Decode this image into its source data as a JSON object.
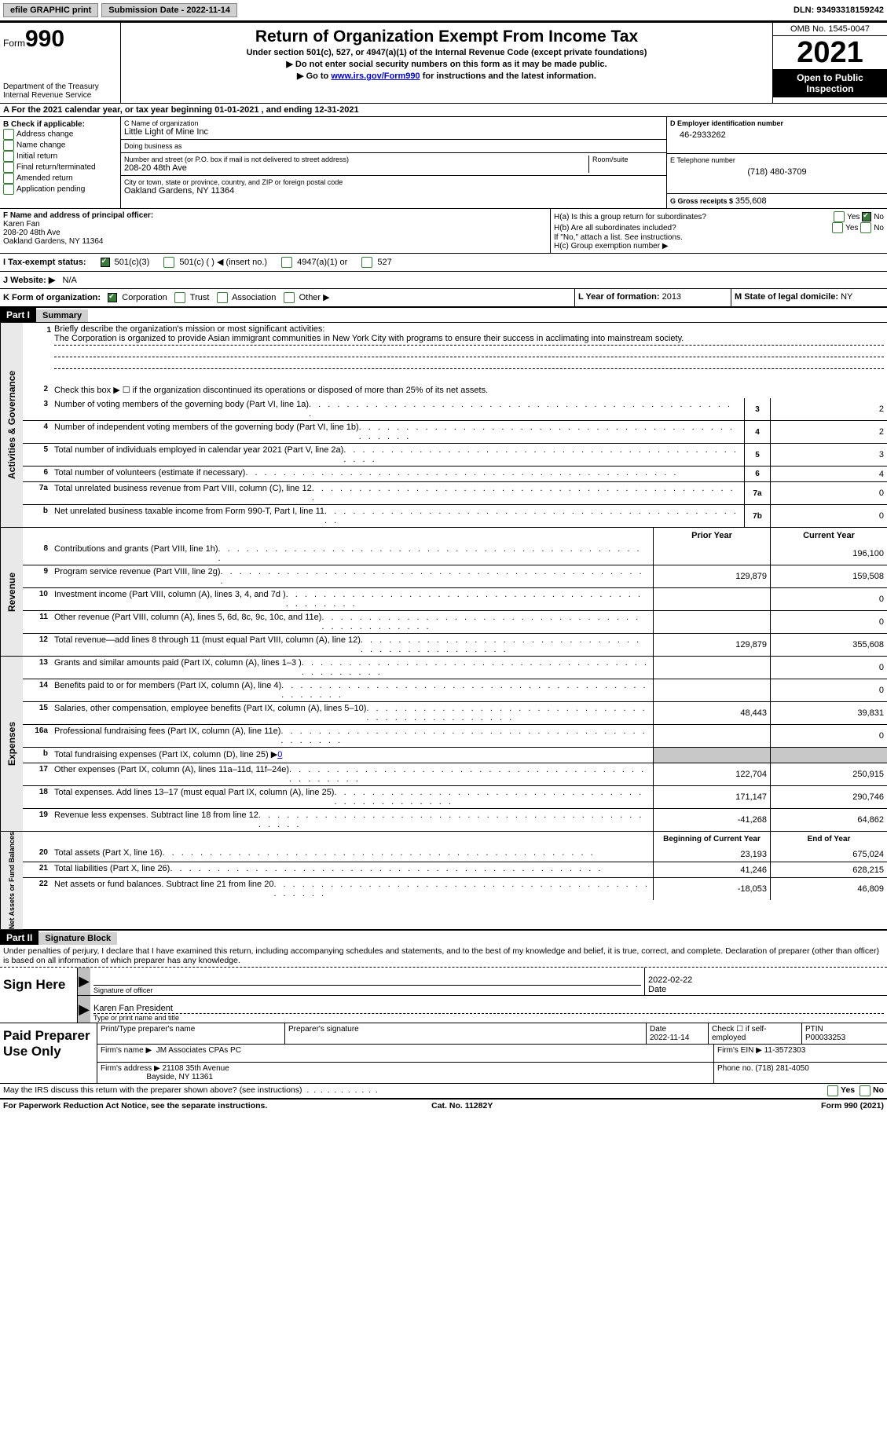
{
  "top": {
    "efile": "efile GRAPHIC print",
    "sub_date_label": "Submission Date - 2022-11-14",
    "dln": "DLN: 93493318159242"
  },
  "header": {
    "form_word": "Form",
    "form_num": "990",
    "dept": "Department of the Treasury",
    "irs": "Internal Revenue Service",
    "title": "Return of Organization Exempt From Income Tax",
    "sub1": "Under section 501(c), 527, or 4947(a)(1) of the Internal Revenue Code (except private foundations)",
    "sub2": "▶ Do not enter social security numbers on this form as it may be made public.",
    "sub3_pre": "▶ Go to ",
    "sub3_link": "www.irs.gov/Form990",
    "sub3_post": " for instructions and the latest information.",
    "omb": "OMB No. 1545-0047",
    "year": "2021",
    "inspect": "Open to Public Inspection"
  },
  "A": "A For the 2021 calendar year, or tax year beginning 01-01-2021    , and ending 12-31-2021",
  "B": {
    "title": "B Check if applicable:",
    "items": [
      "Address change",
      "Name change",
      "Initial return",
      "Final return/terminated",
      "Amended return",
      "Application pending"
    ]
  },
  "C": {
    "name_label": "C Name of organization",
    "name": "Little Light of Mine Inc",
    "dba_label": "Doing business as",
    "dba": "",
    "addr_label": "Number and street (or P.O. box if mail is not delivered to street address)",
    "room_label": "Room/suite",
    "addr": "208-20 48th Ave",
    "city_label": "City or town, state or province, country, and ZIP or foreign postal code",
    "city": "Oakland Gardens, NY  11364"
  },
  "D": {
    "label": "D Employer identification number",
    "val": "46-2933262"
  },
  "E": {
    "label": "E Telephone number",
    "val": "(718) 480-3709"
  },
  "G": {
    "label": "G Gross receipts $",
    "val": "355,608"
  },
  "F": {
    "label": "F  Name and address of principal officer:",
    "name": "Karen Fan",
    "addr": "208-20 48th Ave",
    "city": "Oakland Gardens, NY  11364"
  },
  "H": {
    "a": "H(a)  Is this a group return for subordinates?",
    "b": "H(b)  Are all subordinates included?",
    "b2": "If \"No,\" attach a list. See instructions.",
    "c": "H(c)  Group exemption number ▶",
    "yes": "Yes",
    "no": "No"
  },
  "I": {
    "label": "I  Tax-exempt status:",
    "opts": [
      "501(c)(3)",
      "501(c) (  ) ◀ (insert no.)",
      "4947(a)(1) or",
      "527"
    ]
  },
  "J": {
    "label": "J  Website: ▶",
    "val": "N/A"
  },
  "K": {
    "label": "K Form of organization:",
    "opts": [
      "Corporation",
      "Trust",
      "Association",
      "Other ▶"
    ]
  },
  "L": {
    "label": "L Year of formation:",
    "val": "2013"
  },
  "M": {
    "label": "M State of legal domicile:",
    "val": "NY"
  },
  "partI": {
    "hdr": "Part I",
    "title": "Summary"
  },
  "mission": {
    "q": "Briefly describe the organization's mission or most significant activities:",
    "text": "The Corporation is organized to provide Asian immigrant communities in New York City with programs to ensure their success in acclimating into mainstream society."
  },
  "line2": "Check this box ▶ ☐  if the organization discontinued its operations or disposed of more than 25% of its net assets.",
  "tabs": {
    "gov": "Activities & Governance",
    "rev": "Revenue",
    "exp": "Expenses",
    "net": "Net Assets or Fund Balances"
  },
  "gov_rows": [
    {
      "n": "3",
      "label": "Number of voting members of the governing body (Part VI, line 1a)",
      "box": "3",
      "val": "2"
    },
    {
      "n": "4",
      "label": "Number of independent voting members of the governing body (Part VI, line 1b)",
      "box": "4",
      "val": "2"
    },
    {
      "n": "5",
      "label": "Total number of individuals employed in calendar year 2021 (Part V, line 2a)",
      "box": "5",
      "val": "3"
    },
    {
      "n": "6",
      "label": "Total number of volunteers (estimate if necessary)",
      "box": "6",
      "val": "4"
    },
    {
      "n": "7a",
      "label": "Total unrelated business revenue from Part VIII, column (C), line 12",
      "box": "7a",
      "val": "0"
    },
    {
      "n": "b",
      "label": "Net unrelated business taxable income from Form 990-T, Part I, line 11",
      "box": "7b",
      "val": "0"
    }
  ],
  "col_hdr": {
    "prior": "Prior Year",
    "current": "Current Year"
  },
  "rev_rows": [
    {
      "n": "8",
      "label": "Contributions and grants (Part VIII, line 1h)",
      "p": "",
      "c": "196,100"
    },
    {
      "n": "9",
      "label": "Program service revenue (Part VIII, line 2g)",
      "p": "129,879",
      "c": "159,508"
    },
    {
      "n": "10",
      "label": "Investment income (Part VIII, column (A), lines 3, 4, and 7d )",
      "p": "",
      "c": "0"
    },
    {
      "n": "11",
      "label": "Other revenue (Part VIII, column (A), lines 5, 6d, 8c, 9c, 10c, and 11e)",
      "p": "",
      "c": "0"
    },
    {
      "n": "12",
      "label": "Total revenue—add lines 8 through 11 (must equal Part VIII, column (A), line 12)",
      "p": "129,879",
      "c": "355,608"
    }
  ],
  "exp_rows": [
    {
      "n": "13",
      "label": "Grants and similar amounts paid (Part IX, column (A), lines 1–3 )",
      "p": "",
      "c": "0"
    },
    {
      "n": "14",
      "label": "Benefits paid to or for members (Part IX, column (A), line 4)",
      "p": "",
      "c": "0"
    },
    {
      "n": "15",
      "label": "Salaries, other compensation, employee benefits (Part IX, column (A), lines 5–10)",
      "p": "48,443",
      "c": "39,831"
    },
    {
      "n": "16a",
      "label": "Professional fundraising fees (Part IX, column (A), line 11e)",
      "p": "",
      "c": "0"
    },
    {
      "n": "b",
      "label_html": "Total fundraising expenses (Part IX, column (D), line 25) ▶",
      "link": "0",
      "shaded": true
    },
    {
      "n": "17",
      "label": "Other expenses (Part IX, column (A), lines 11a–11d, 11f–24e)",
      "p": "122,704",
      "c": "250,915"
    },
    {
      "n": "18",
      "label": "Total expenses. Add lines 13–17 (must equal Part IX, column (A), line 25)",
      "p": "171,147",
      "c": "290,746"
    },
    {
      "n": "19",
      "label": "Revenue less expenses. Subtract line 18 from line 12",
      "p": "-41,268",
      "c": "64,862"
    }
  ],
  "net_hdr": {
    "beg": "Beginning of Current Year",
    "end": "End of Year"
  },
  "net_rows": [
    {
      "n": "20",
      "label": "Total assets (Part X, line 16)",
      "p": "23,193",
      "c": "675,024"
    },
    {
      "n": "21",
      "label": "Total liabilities (Part X, line 26)",
      "p": "41,246",
      "c": "628,215"
    },
    {
      "n": "22",
      "label": "Net assets or fund balances. Subtract line 21 from line 20",
      "p": "-18,053",
      "c": "46,809"
    }
  ],
  "partII": {
    "hdr": "Part II",
    "title": "Signature Block"
  },
  "sig": {
    "decl": "Under penalties of perjury, I declare that I have examined this return, including accompanying schedules and statements, and to the best of my knowledge and belief, it is true, correct, and complete. Declaration of preparer (other than officer) is based on all information of which preparer has any knowledge.",
    "sign_here": "Sign Here",
    "sig_officer": "Signature of officer",
    "date": "Date",
    "date_val": "2022-02-22",
    "name_line": "Karen Fan  President",
    "name_lbl": "Type or print name and title"
  },
  "paid": {
    "title": "Paid Preparer Use Only",
    "r1": {
      "a": "Print/Type preparer's name",
      "b": "Preparer's signature",
      "c": "Date",
      "cval": "2022-11-14",
      "d": "Check ☐ if self-employed",
      "e": "PTIN",
      "eval": "P00033253"
    },
    "r2": {
      "a": "Firm's name      ▶",
      "aval": "JM Associates CPAs PC",
      "b": "Firm's EIN ▶",
      "bval": "11-3572303"
    },
    "r3": {
      "a": "Firm's address ▶",
      "aval": "21108 35th Avenue",
      "a2": "Bayside, NY  11361",
      "b": "Phone no.",
      "bval": "(718) 281-4050"
    }
  },
  "footer": {
    "q": "May the IRS discuss this return with the preparer shown above? (see instructions)",
    "yes": "Yes",
    "no": "No",
    "notice": "For Paperwork Reduction Act Notice, see the separate instructions.",
    "cat": "Cat. No. 11282Y",
    "form": "Form 990 (2021)"
  }
}
